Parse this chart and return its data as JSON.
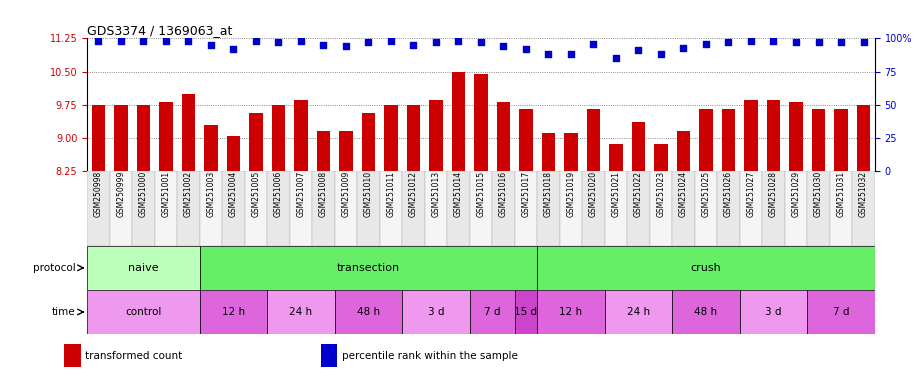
{
  "title": "GDS3374 / 1369063_at",
  "samples": [
    "GSM250998",
    "GSM250999",
    "GSM251000",
    "GSM251001",
    "GSM251002",
    "GSM251003",
    "GSM251004",
    "GSM251005",
    "GSM251006",
    "GSM251007",
    "GSM251008",
    "GSM251009",
    "GSM251010",
    "GSM251011",
    "GSM251012",
    "GSM251013",
    "GSM251014",
    "GSM251015",
    "GSM251016",
    "GSM251017",
    "GSM251018",
    "GSM251019",
    "GSM251020",
    "GSM251021",
    "GSM251022",
    "GSM251023",
    "GSM251024",
    "GSM251025",
    "GSM251026",
    "GSM251027",
    "GSM251028",
    "GSM251029",
    "GSM251030",
    "GSM251031",
    "GSM251032"
  ],
  "bar_values": [
    9.75,
    9.75,
    9.75,
    9.8,
    10.0,
    9.3,
    9.05,
    9.55,
    9.75,
    9.85,
    9.15,
    9.15,
    9.55,
    9.75,
    9.75,
    9.85,
    10.5,
    10.45,
    9.8,
    9.65,
    9.1,
    9.1,
    9.65,
    8.85,
    9.35,
    8.85,
    9.15,
    9.65,
    9.65,
    9.85,
    9.85,
    9.8,
    9.65,
    9.65,
    9.75
  ],
  "percentile_values": [
    98,
    98,
    98,
    98,
    98,
    95,
    92,
    98,
    97,
    98,
    95,
    94,
    97,
    98,
    95,
    97,
    98,
    97,
    94,
    92,
    88,
    88,
    96,
    85,
    91,
    88,
    93,
    96,
    97,
    98,
    98,
    97,
    97,
    97,
    97
  ],
  "ylim_left": [
    8.25,
    11.25
  ],
  "ylim_right": [
    0,
    100
  ],
  "yticks_left": [
    8.25,
    9.0,
    9.75,
    10.5,
    11.25
  ],
  "yticks_right": [
    0,
    25,
    50,
    75,
    100
  ],
  "bar_color": "#cc0000",
  "dot_color": "#0000cc",
  "protocol_regions": [
    {
      "label": "naive",
      "start": 0,
      "end": 5,
      "color": "#bbffbb"
    },
    {
      "label": "transection",
      "start": 5,
      "end": 20,
      "color": "#66ee66"
    },
    {
      "label": "crush",
      "start": 20,
      "end": 35,
      "color": "#66ee66"
    }
  ],
  "time_regions": [
    {
      "label": "control",
      "start": 0,
      "end": 5,
      "color": "#ee99ee"
    },
    {
      "label": "12 h",
      "start": 5,
      "end": 8,
      "color": "#dd66dd"
    },
    {
      "label": "24 h",
      "start": 8,
      "end": 11,
      "color": "#ee99ee"
    },
    {
      "label": "48 h",
      "start": 11,
      "end": 14,
      "color": "#dd66dd"
    },
    {
      "label": "3 d",
      "start": 14,
      "end": 17,
      "color": "#ee99ee"
    },
    {
      "label": "7 d",
      "start": 17,
      "end": 19,
      "color": "#dd66dd"
    },
    {
      "label": "15 d",
      "start": 19,
      "end": 20,
      "color": "#cc44cc"
    },
    {
      "label": "12 h",
      "start": 20,
      "end": 23,
      "color": "#dd66dd"
    },
    {
      "label": "24 h",
      "start": 23,
      "end": 26,
      "color": "#ee99ee"
    },
    {
      "label": "48 h",
      "start": 26,
      "end": 29,
      "color": "#dd66dd"
    },
    {
      "label": "3 d",
      "start": 29,
      "end": 32,
      "color": "#ee99ee"
    },
    {
      "label": "7 d",
      "start": 32,
      "end": 35,
      "color": "#dd66dd"
    }
  ],
  "legend_items": [
    {
      "label": "transformed count",
      "color": "#cc0000"
    },
    {
      "label": "percentile rank within the sample",
      "color": "#0000cc"
    }
  ],
  "bg_color": "#ffffff",
  "grid_color": "#666666"
}
